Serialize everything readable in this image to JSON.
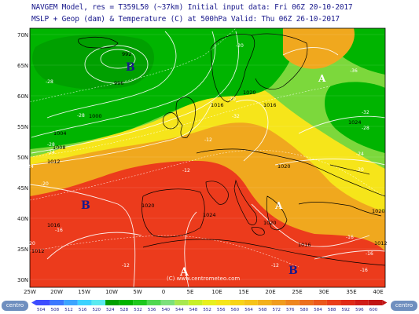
{
  "header": {
    "line1": "NAVGEM Model, res = T359L50 (~37km)   Initial input data: Fri 06Z 20-10-2017",
    "line2": "MSLP + Geop (dam) & Temperature (C) at 500hPa  Valid: Thu 06Z 26-10-2017"
  },
  "colors": {
    "cold": "#00b400",
    "lightgreen": "#7cd83c",
    "yellow": "#f6e51a",
    "orange": "#f0a81e",
    "red": "#ec3b1c",
    "land_border": "#000000",
    "isobar": "#ffffff",
    "text_blue": "#1a1a8c"
  },
  "map": {
    "lat_labels": [
      "70N",
      "65N",
      "60N",
      "55N",
      "50N",
      "45N",
      "40N",
      "35N",
      "30N"
    ],
    "lon_labels": [
      "25W",
      "20W",
      "15W",
      "10W",
      "5W",
      "0",
      "5E",
      "10E",
      "15E",
      "20E",
      "25E",
      "30E",
      "35E",
      "40E"
    ],
    "pressure_centers": [
      {
        "letter": "B",
        "type": "low"
      },
      {
        "letter": "B",
        "type": "low"
      },
      {
        "letter": "B",
        "type": "low"
      },
      {
        "letter": "A",
        "type": "high"
      },
      {
        "letter": "A",
        "type": "high"
      },
      {
        "letter": "A",
        "type": "high"
      }
    ],
    "isobar_labels": [
      "992",
      "996",
      "1000",
      "1004",
      "1008",
      "1012",
      "1016",
      "1016",
      "1016",
      "1020",
      "1020",
      "1020",
      "1020",
      "1024",
      "1024",
      "1020",
      "1016",
      "1012",
      "1012"
    ],
    "temp_labels": [
      "-28",
      "-28",
      "-28",
      "-24",
      "-24",
      "-20",
      "-20",
      "-20",
      "-32",
      "-36",
      "-32",
      "-28",
      "-24",
      "-20",
      "-12",
      "-12",
      "-16",
      "-20",
      "-12",
      "-12",
      "-16",
      "-16",
      "-16"
    ],
    "watermark": "(C) www.centrometeo.com"
  },
  "legend": {
    "values": [
      "504",
      "508",
      "512",
      "516",
      "520",
      "524",
      "528",
      "532",
      "536",
      "540",
      "544",
      "548",
      "552",
      "556",
      "560",
      "564",
      "568",
      "572",
      "576",
      "580",
      "584",
      "588",
      "592",
      "596",
      "600"
    ],
    "colors": [
      "#3c4cff",
      "#3c78ff",
      "#3ca5ff",
      "#3cd2ff",
      "#5aeaf0",
      "#00a000",
      "#00b400",
      "#1ec81e",
      "#50d850",
      "#7ce07c",
      "#a8e850",
      "#c8f028",
      "#e8f01e",
      "#f6e51a",
      "#f8d418",
      "#f6c31a",
      "#f3b01c",
      "#f09c1e",
      "#ee8620",
      "#ec6f1e",
      "#eb581c",
      "#ea3e1a",
      "#e02a18",
      "#d01c18",
      "#c01414"
    ]
  },
  "logos": {
    "left": "centro",
    "right": "centro"
  }
}
